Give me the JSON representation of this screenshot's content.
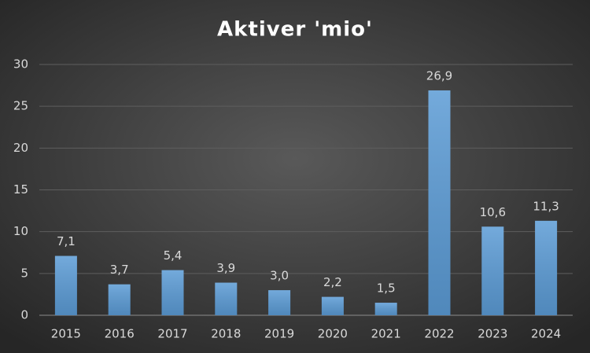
{
  "chart_data": {
    "type": "bar",
    "title": "Aktiver 'mio'",
    "categories": [
      "2015",
      "2016",
      "2017",
      "2018",
      "2019",
      "2020",
      "2021",
      "2022",
      "2023",
      "2024"
    ],
    "values": [
      7.1,
      3.7,
      5.4,
      3.9,
      3.0,
      2.2,
      1.5,
      26.9,
      10.6,
      11.3
    ],
    "value_labels": [
      "7,1",
      "3,7",
      "5,4",
      "3,9",
      "3,0",
      "2,2",
      "1,5",
      "26,9",
      "10,6",
      "11,3"
    ],
    "color": "#5b9bd5",
    "ylim": [
      0,
      30
    ],
    "yticks": [
      0,
      5,
      10,
      15,
      20,
      25,
      30
    ],
    "grid": true
  }
}
